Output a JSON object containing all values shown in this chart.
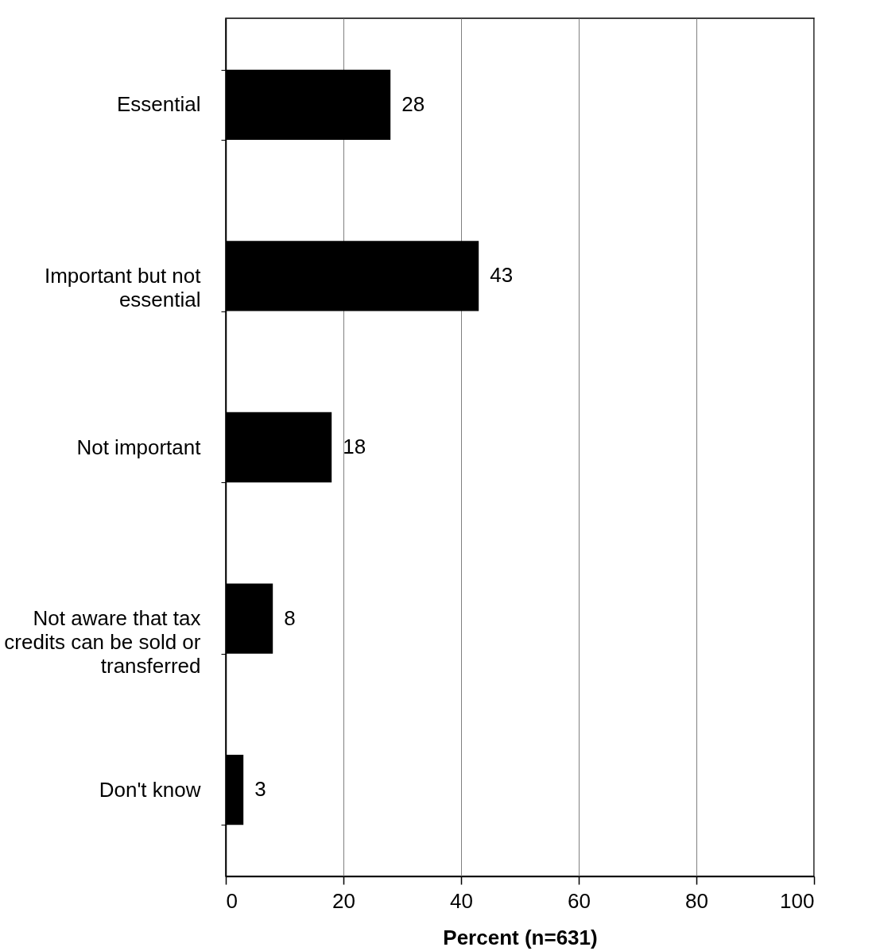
{
  "chart_data": {
    "type": "bar",
    "orientation": "horizontal",
    "categories": [
      "Essential",
      "Important but not essential",
      "Not important",
      "Not aware that tax credits can be sold or transferred",
      "Don't know"
    ],
    "values": [
      28,
      43,
      18,
      8,
      3
    ],
    "color": "#000000",
    "xlabel": "Percent (n=631)",
    "xlim": [
      0,
      100
    ],
    "xticks": [
      0,
      20,
      40,
      60,
      80,
      100
    ],
    "grid": "x",
    "data_labels": true
  }
}
